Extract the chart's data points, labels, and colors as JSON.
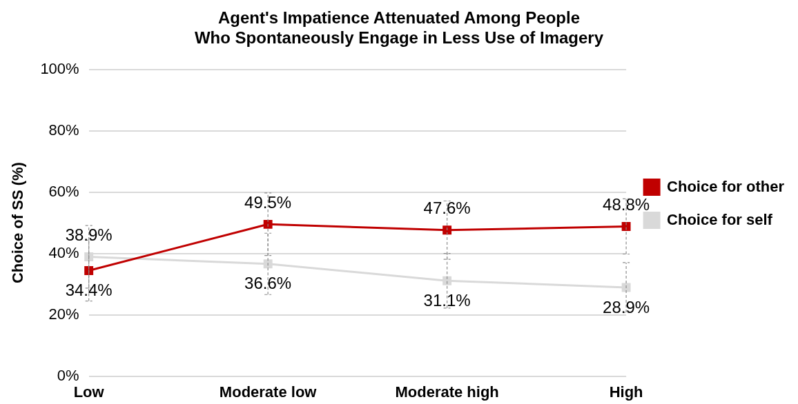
{
  "chart_data": {
    "type": "line",
    "title": "Agent's Impatience Attenuated Among People\nWho Spontaneously Engage in Less Use of Imagery",
    "ylabel": "Choice of SS (%)",
    "categories": [
      "Low",
      "Moderate low",
      "Moderate high",
      "High"
    ],
    "series": [
      {
        "name": "Choice for other",
        "color": "#c00000",
        "values": [
          34.4,
          49.5,
          47.6,
          48.8
        ],
        "value_labels": [
          "34.4%",
          "49.5%",
          "47.6%",
          "48.8%"
        ],
        "errors": [
          9.9,
          10.2,
          9.5,
          9.0
        ]
      },
      {
        "name": "Choice for self",
        "color": "#d9d9d9",
        "values": [
          38.9,
          36.6,
          31.1,
          28.9
        ],
        "value_labels": [
          "38.9%",
          "36.6%",
          "31.1%",
          "28.9%"
        ],
        "errors": [
          10.2,
          10.0,
          8.9,
          8.1
        ]
      }
    ],
    "ylim": [
      0,
      100
    ],
    "yticks": [
      {
        "value": 0,
        "label": "0%"
      },
      {
        "value": 20,
        "label": "20%"
      },
      {
        "value": 40,
        "label": "40%"
      },
      {
        "value": 60,
        "label": "60%"
      },
      {
        "value": 80,
        "label": "80%"
      },
      {
        "value": 100,
        "label": "100%"
      }
    ],
    "grid": "y",
    "legend": "right",
    "marker": "square",
    "line_style": "solid"
  }
}
